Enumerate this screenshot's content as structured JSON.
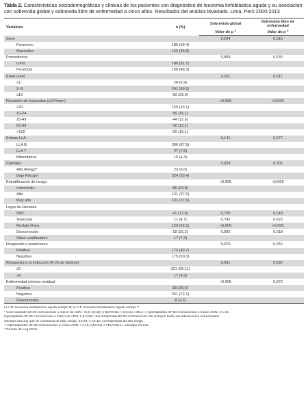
{
  "title": {
    "label": "Tabla 2.",
    "text": " Características sociodemográficas y clínicas de los pacientes con diagnóstico de leucemia linfoblástica aguda y su asociación con sobrevida global y sobrevida libre de enfermedad a cinco años. Resultados del análisis bivariado. Lima, Perú 2000-2013"
  },
  "header": {
    "variables": "Variables",
    "n_pct": "n (%)",
    "sobrevida_global": "Sobrevida global",
    "sobrevida_libre": "Sobrevida libre de enfermedad",
    "valor_p_1": "Valor de p *",
    "valor_p_2": "Valor de p *"
  },
  "rows": [
    {
      "label": "Sexo",
      "n": "",
      "p1": "0,204",
      "p2": "0,015",
      "indent": false,
      "shade": true
    },
    {
      "label": "Femenino",
      "n": "186 (53,4)",
      "p1": "",
      "p2": "",
      "indent": true,
      "shade": false
    },
    {
      "label": "Masculino",
      "n": "162 (46,6)",
      "p1": "",
      "p2": "",
      "indent": true,
      "shade": true
    },
    {
      "label": "Procedencia",
      "n": "",
      "p1": "0,909",
      "p2": "0,630",
      "indent": false,
      "shade": false
    },
    {
      "label": "Lima",
      "n": "180 (51,7)",
      "p1": "",
      "p2": "",
      "indent": true,
      "shade": true
    },
    {
      "label": "Provincia",
      "n": "168 (48,3)",
      "p1": "",
      "p2": "",
      "indent": true,
      "shade": false
    },
    {
      "label": "Edad (año)",
      "n": "",
      "p1": "0,011",
      "p2": "0,017",
      "indent": false,
      "shade": true
    },
    {
      "label": "≤1",
      "n": "24 (6,9)",
      "p1": "",
      "p2": "",
      "indent": true,
      "shade": false
    },
    {
      "label": "2–9",
      "n": "241 (69,2)",
      "p1": "",
      "p2": "",
      "indent": true,
      "shade": true
    },
    {
      "label": "≥10",
      "n": "83 (23,9)",
      "p1": "",
      "p2": "",
      "indent": true,
      "shade": false
    },
    {
      "label": "Recuento de leucocitos (x10³/mm²)",
      "n": "",
      "p1": "<0,005",
      "p2": "<0,005",
      "indent": false,
      "shade": true
    },
    {
      "label": "<10",
      "n": "150 (43,1)",
      "p1": "",
      "p2": "",
      "indent": true,
      "shade": false
    },
    {
      "label": "10-24",
      "n": "56 (16,1)",
      "p1": "",
      "p2": "",
      "indent": true,
      "shade": true
    },
    {
      "label": "25-49",
      "n": "44 (12,6)",
      "p1": "",
      "p2": "",
      "indent": true,
      "shade": false
    },
    {
      "label": "50-99",
      "n": "42 (12,1)",
      "p1": "",
      "p2": "",
      "indent": true,
      "shade": true
    },
    {
      "label": ">100",
      "n": "56 (16,1)",
      "p1": "",
      "p2": "",
      "indent": true,
      "shade": false
    },
    {
      "label": "Estirpe LLA",
      "n": "",
      "p1": "0,141",
      "p2": "0,077",
      "indent": false,
      "shade": true
    },
    {
      "label": "LLA B",
      "n": "306 (87,9)",
      "p1": "",
      "p2": "",
      "indent": true,
      "shade": false
    },
    {
      "label": "LLA T",
      "n": "27 (7,8)",
      "p1": "",
      "p2": "",
      "indent": true,
      "shade": true
    },
    {
      "label": "Bifenotípica",
      "n": "15 (4,3)",
      "p1": "",
      "p2": "",
      "indent": true,
      "shade": false
    },
    {
      "label": "Cariotipo",
      "n": "",
      "p1": "0,029",
      "p2": "0,701",
      "indent": false,
      "shade": true
    },
    {
      "label": "Alto Riesgo*",
      "n": "23 (6,6)",
      "p1": "",
      "p2": "",
      "indent": true,
      "shade": false
    },
    {
      "label": "Bajo Riesgo†",
      "n": "324 (93,4)",
      "p1": "",
      "p2": "",
      "indent": true,
      "shade": true
    },
    {
      "label": "Estratificación de riesgo",
      "n": "",
      "p1": "<0,005",
      "p2": "<0,005",
      "indent": false,
      "shade": false
    },
    {
      "label": "Intermedio",
      "n": "86 (24,8)",
      "p1": "",
      "p2": "",
      "indent": true,
      "shade": true
    },
    {
      "label": "Alto",
      "n": "131 (37,6)",
      "p1": "",
      "p2": "",
      "indent": true,
      "shade": false
    },
    {
      "label": "Muy alto",
      "n": "131 (37,6)",
      "p1": "",
      "p2": "",
      "indent": true,
      "shade": true
    },
    {
      "label": "Lugar de Recaída",
      "n": "",
      "p1": "",
      "p2": "",
      "indent": false,
      "shade": false
    },
    {
      "label": "SNC",
      "n": "41 (17,8)",
      "p1": "0,730",
      "p2": "0,018",
      "indent": true,
      "shade": true
    },
    {
      "label": "Testicular",
      "n": "11 (4,7)",
      "p1": "0,742",
      "p2": "0,620",
      "indent": true,
      "shade": false
    },
    {
      "label": "Medula Ósea",
      "n": "120 (52,1)",
      "p1": "<0,005",
      "p2": "<0,005",
      "indent": true,
      "shade": true
    },
    {
      "label": "Desconocido",
      "n": "58 (25,2)",
      "p1": "0,092",
      "p2": "0,018",
      "indent": true,
      "shade": false
    },
    {
      "label": "Sitios combinados",
      "n": "17 (7,3)",
      "p1": "",
      "p2": "",
      "indent": true,
      "shade": true
    },
    {
      "label": "Respuesta a prednisona",
      "n": "",
      "p1": "0,370",
      "p2": "0,052",
      "indent": false,
      "shade": false
    },
    {
      "label": "Positiva",
      "n": "173 (49,7)",
      "p1": "",
      "p2": "",
      "indent": true,
      "shade": true
    },
    {
      "label": "Negativa",
      "n": "175 (50,3)",
      "p1": "",
      "p2": "",
      "indent": true,
      "shade": false
    },
    {
      "label": "Respuesta a la inducción IA (% de blastos)",
      "n": "",
      "p1": "0,001",
      "p2": "0,932",
      "indent": false,
      "shade": true
    },
    {
      "label": "≥5",
      "n": "331 (95,11)",
      "p1": "",
      "p2": "",
      "indent": true,
      "shade": false
    },
    {
      "label": ">5",
      "n": "17 (4,9)",
      "p1": "",
      "p2": "",
      "indent": true,
      "shade": true
    },
    {
      "label": "Enfermedad mínima residual",
      "n": "",
      "p1": "<0,005",
      "p2": "0,070",
      "indent": false,
      "shade": false
    },
    {
      "label": "Positiva",
      "n": "89 (25,6)",
      "p1": "",
      "p2": "",
      "indent": true,
      "shade": true
    },
    {
      "label": "Negativa",
      "n": "251 (72,1)",
      "p1": "",
      "p2": "",
      "indent": true,
      "shade": false
    },
    {
      "label": "Desconocida",
      "n": "8 (2,3)",
      "p1": "",
      "p2": "",
      "indent": true,
      "shade": true
    }
  ],
  "notes": [
    "LLA B: leucemia linfoblástica aguda estirpe B; LLA T: leucemia linfoblástica aguda estirpe T",
    "* Casi haploide 24-29 cromosomas o índice de ADN: <0,6; t(9;22) o BCR/ABL+; t(4;11) o MLL+; Hiperdiploidía 47-50 cromosomas o índice ADN: 1-1,16;",
    "Hipodiploidia 30-45 cromosomas o índice de ADN: 0,6-0,96; casi tetraploidia 82-94 cromosomas. Se incluyen todas las alteraciones estructurales",
    "excepto t(12;21) que se considera de bajo riesgo. t(9;22) y t(4;11) consideradas de alto riesgo",
    "† Hiperdiploidía: 51-81 cromosomas o índice ADN: >1,16; t(12;21) o TEL/AML1+ cariotipo normal",
    "* Prueba de Log Rank"
  ]
}
